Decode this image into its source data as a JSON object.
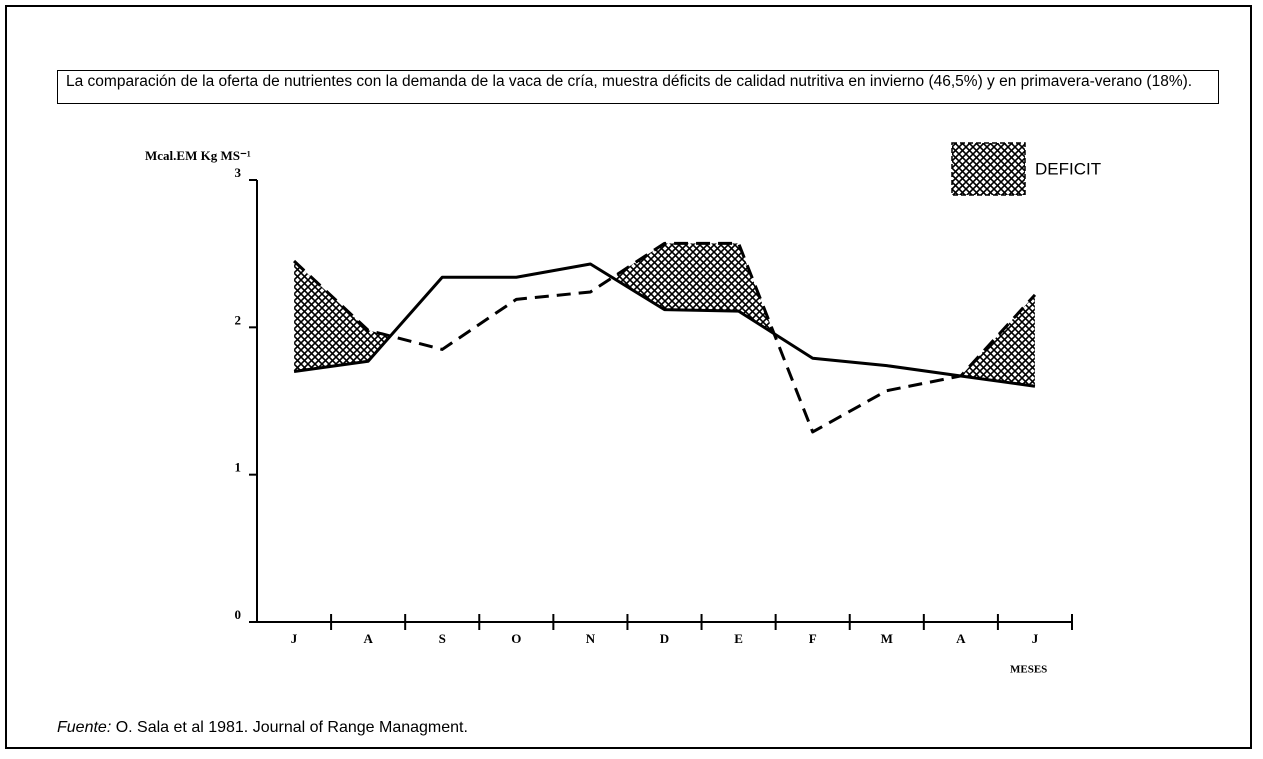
{
  "chart_data": {
    "type": "line",
    "title": "La comparación de la oferta de nutrientes con la demanda de la vaca de cría, muestra déficits de calidad nutritiva en invierno (46,5%) y en primavera-verano (18%).",
    "y_label": "Mcal.EM Kg MS⁻¹",
    "x_label": "MESES",
    "categories": [
      "J",
      "A",
      "S",
      "O",
      "N",
      "D",
      "E",
      "F",
      "M",
      "A",
      "J"
    ],
    "series": [
      {
        "color": "#000000",
        "dashed": false,
        "values": [
          1.7,
          1.77,
          2.34,
          2.34,
          2.43,
          2.12,
          2.11,
          1.79,
          1.74,
          1.67,
          1.6
        ]
      },
      {
        "color": "#000000",
        "dashed": true,
        "values": [
          2.45,
          1.98,
          1.85,
          2.19,
          2.24,
          2.57,
          2.57,
          1.29,
          1.57,
          1.67,
          2.22
        ]
      }
    ],
    "legend": {
      "label": "DEFICIT",
      "position": "upper right"
    },
    "ylim": [
      0,
      3
    ],
    "yticks": [
      0,
      1,
      2,
      3
    ],
    "source_label": "Fuente:",
    "source": "O. Sala et al 1981. Journal of Range Managment."
  }
}
